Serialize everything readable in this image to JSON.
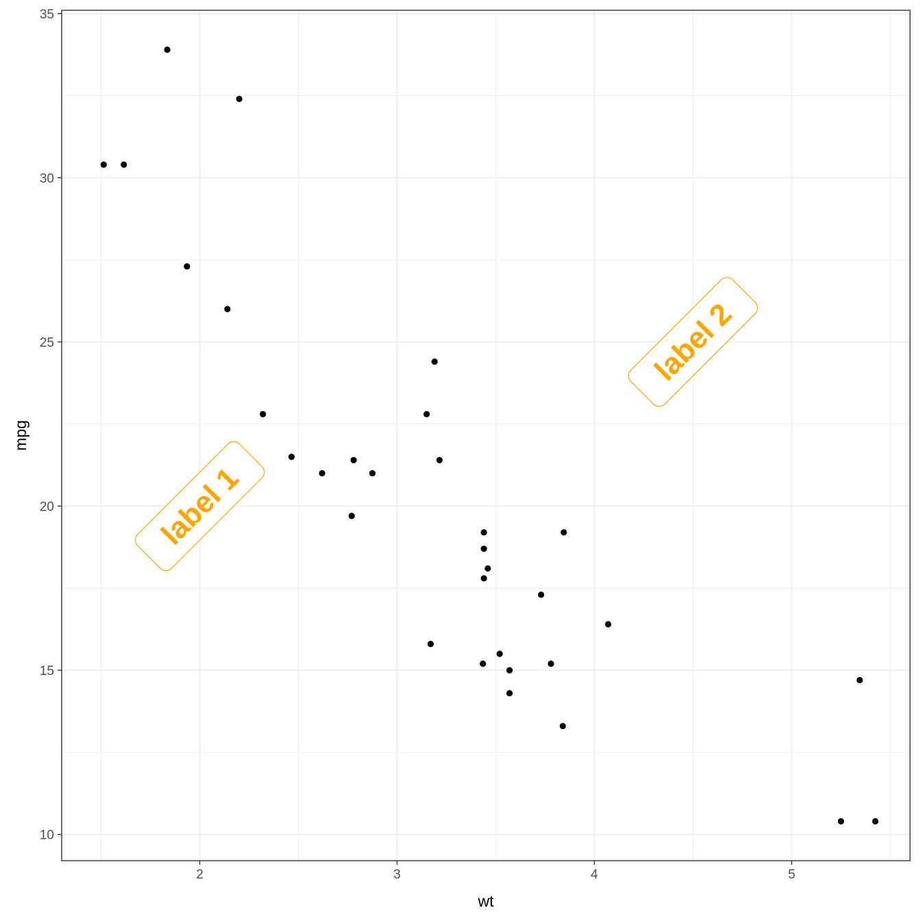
{
  "chart_data": {
    "type": "scatter",
    "title": "",
    "xlabel": "wt",
    "ylabel": "mpg",
    "xlim": [
      1.3,
      5.6
    ],
    "ylim": [
      9.2,
      35.1
    ],
    "x_ticks": [
      2,
      3,
      4,
      5
    ],
    "y_ticks": [
      10,
      15,
      20,
      25,
      30,
      35
    ],
    "grid": true,
    "legend": "none",
    "point_color": "#000000",
    "annotation_color": "#FFA500",
    "points": [
      {
        "x": 2.62,
        "y": 21.0
      },
      {
        "x": 2.875,
        "y": 21.0
      },
      {
        "x": 2.32,
        "y": 22.8
      },
      {
        "x": 3.215,
        "y": 21.4
      },
      {
        "x": 3.44,
        "y": 18.7
      },
      {
        "x": 3.46,
        "y": 18.1
      },
      {
        "x": 3.57,
        "y": 14.3
      },
      {
        "x": 3.19,
        "y": 24.4
      },
      {
        "x": 3.15,
        "y": 22.8
      },
      {
        "x": 3.44,
        "y": 19.2
      },
      {
        "x": 3.44,
        "y": 17.8
      },
      {
        "x": 4.07,
        "y": 16.4
      },
      {
        "x": 3.73,
        "y": 17.3
      },
      {
        "x": 3.78,
        "y": 15.2
      },
      {
        "x": 5.25,
        "y": 10.4
      },
      {
        "x": 5.424,
        "y": 10.4
      },
      {
        "x": 5.345,
        "y": 14.7
      },
      {
        "x": 2.2,
        "y": 32.4
      },
      {
        "x": 1.615,
        "y": 30.4
      },
      {
        "x": 1.835,
        "y": 33.9
      },
      {
        "x": 2.465,
        "y": 21.5
      },
      {
        "x": 3.52,
        "y": 15.5
      },
      {
        "x": 3.435,
        "y": 15.2
      },
      {
        "x": 3.84,
        "y": 13.3
      },
      {
        "x": 3.845,
        "y": 19.2
      },
      {
        "x": 1.935,
        "y": 27.3
      },
      {
        "x": 2.14,
        "y": 26.0
      },
      {
        "x": 1.513,
        "y": 30.4
      },
      {
        "x": 3.17,
        "y": 15.8
      },
      {
        "x": 2.77,
        "y": 19.7
      },
      {
        "x": 3.57,
        "y": 15.0
      },
      {
        "x": 2.78,
        "y": 21.4
      }
    ],
    "annotations": [
      {
        "text": "label 1",
        "x": 2.0,
        "y": 20.0,
        "angle": -45
      },
      {
        "text": "label 2",
        "x": 4.5,
        "y": 25.0,
        "angle": -45
      }
    ]
  }
}
